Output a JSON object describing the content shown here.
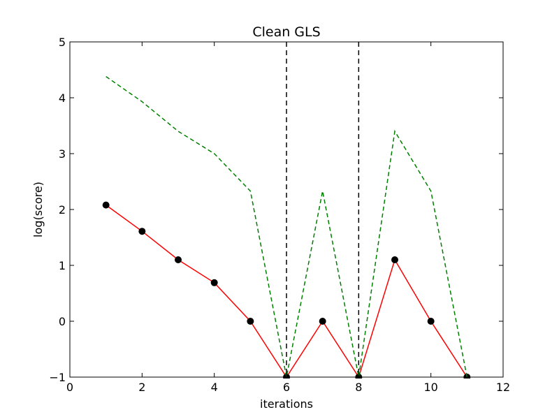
{
  "chart_data": {
    "type": "line",
    "title": "Clean GLS",
    "xlabel": "iterations",
    "ylabel": "log(score)",
    "xlim": [
      0,
      12
    ],
    "ylim": [
      -1,
      5
    ],
    "xticks": [
      0,
      2,
      4,
      6,
      8,
      10,
      12
    ],
    "yticks": [
      -1,
      0,
      1,
      2,
      3,
      4,
      5
    ],
    "grid": false,
    "vlines": [
      6,
      8
    ],
    "series": [
      {
        "style": "solid-with-markers",
        "color": "#ff0000",
        "marker_color": "#000000",
        "x": [
          1,
          2,
          3,
          4,
          5,
          6,
          7,
          8,
          9,
          10,
          11
        ],
        "y": [
          2.08,
          1.61,
          1.1,
          0.69,
          0.0,
          -1.0,
          0.0,
          -1.0,
          1.1,
          0.0,
          -1.0
        ]
      },
      {
        "style": "dashed",
        "color": "#008000",
        "x": [
          1,
          2,
          3,
          4,
          5,
          6,
          7,
          8,
          9,
          10,
          11
        ],
        "y": [
          4.38,
          3.93,
          3.4,
          3.0,
          2.33,
          -1.0,
          2.33,
          -1.0,
          3.4,
          2.33,
          -1.0
        ]
      }
    ]
  },
  "colors": {
    "vline": "#000000",
    "axes": "#000000"
  }
}
